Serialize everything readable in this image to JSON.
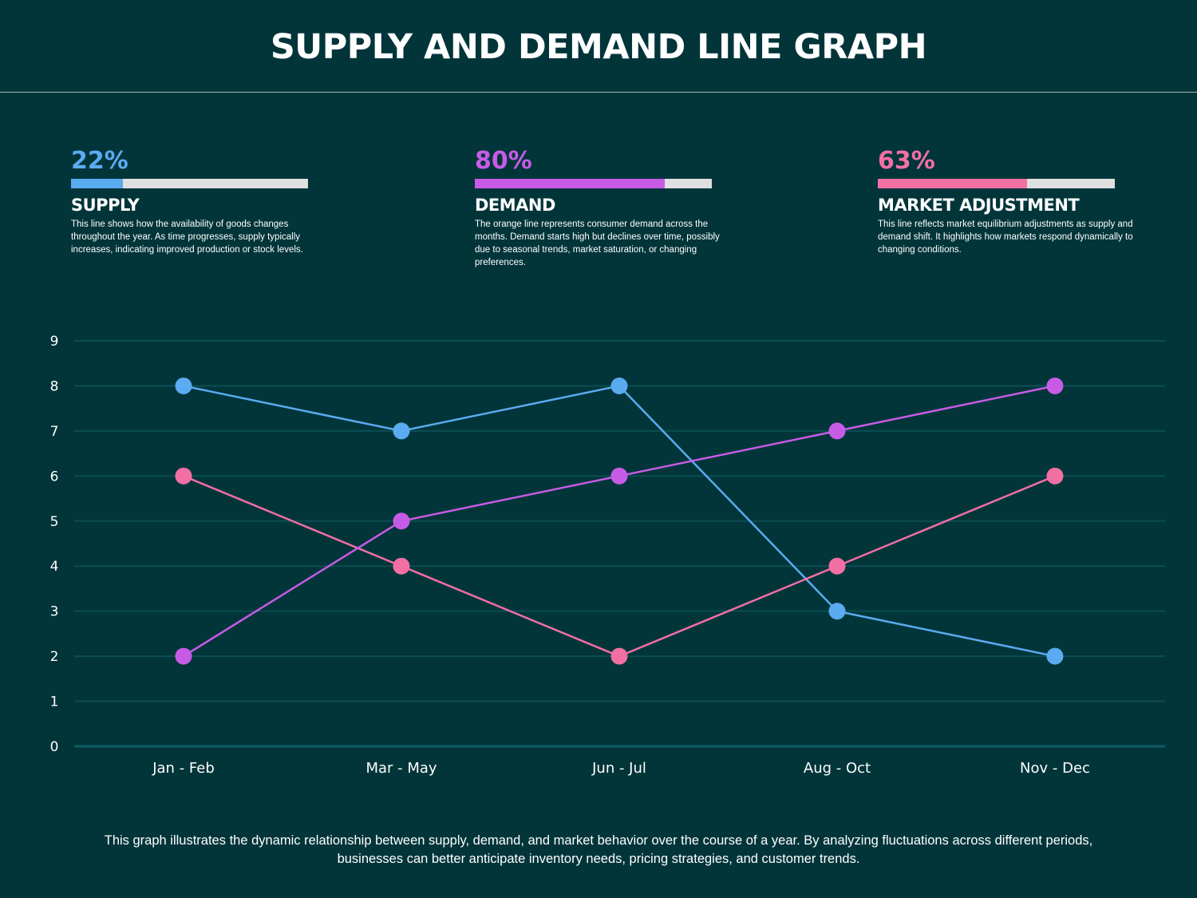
{
  "title": "SUPPLY AND DEMAND LINE GRAPH",
  "cards": [
    {
      "percent": "22%",
      "value": 22,
      "title": "SUPPLY",
      "color": "#5aabf0",
      "description": "This line shows how the availability of goods changes throughout the year. As time progresses, supply typically increases, indicating improved production or stock levels."
    },
    {
      "percent": "80%",
      "value": 80,
      "title": "DEMAND",
      "color": "#c85be6",
      "description": "The orange line represents consumer demand across the months. Demand starts high but declines over time, possibly due to seasonal trends, market saturation, or changing preferences."
    },
    {
      "percent": "63%",
      "value": 63,
      "title": "MARKET ADJUSTMENT",
      "color": "#f26fa4",
      "description": "This line reflects market equilibrium adjustments as supply and demand shift. It highlights how markets respond dynamically to changing conditions."
    }
  ],
  "chart_data": {
    "type": "line",
    "categories": [
      "Jan - Feb",
      "Mar - May",
      "Jun - Jul",
      "Aug - Oct",
      "Nov - Dec"
    ],
    "ylim": [
      0,
      9
    ],
    "yticks": [
      "0",
      "1",
      "2",
      "3",
      "4",
      "5",
      "6",
      "7",
      "8",
      "9"
    ],
    "grid": true,
    "series": [
      {
        "values": [
          8,
          7,
          8,
          3,
          2
        ],
        "color": "#5aabf0"
      },
      {
        "values": [
          6,
          4,
          2,
          4,
          6
        ],
        "color": "#f26fa4"
      },
      {
        "values": [
          2,
          5,
          6,
          7,
          8
        ],
        "color": "#c85be6"
      }
    ]
  },
  "footer": "This graph illustrates the dynamic relationship between supply, demand, and market behavior over the course of a year. By analyzing fluctuations across different periods, businesses can better anticipate inventory needs, pricing strategies, and customer trends."
}
